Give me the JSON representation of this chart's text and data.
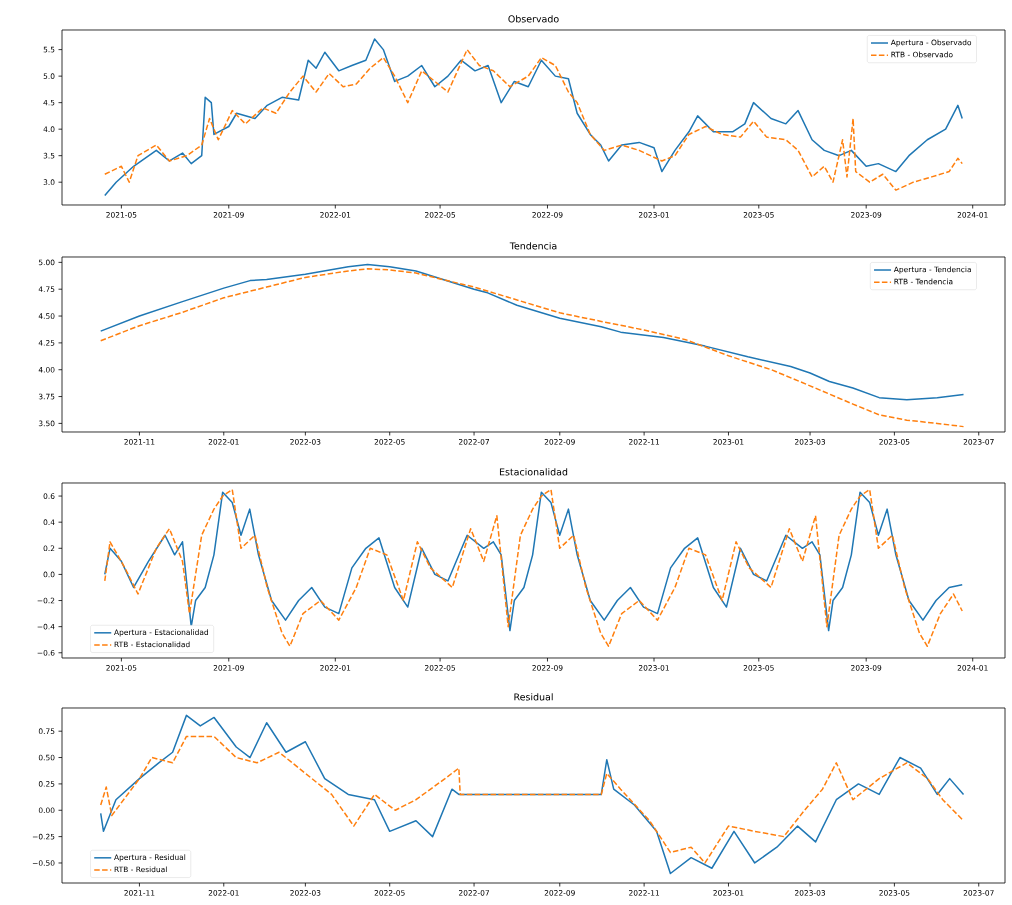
{
  "chart_data": [
    {
      "type": "line",
      "title": "Observado",
      "legend": "top right",
      "xlim": [
        "2021-02-22",
        "2024-02-07"
      ],
      "ylim": [
        2.57,
        5.87
      ],
      "xticks": [
        "2021-05",
        "2021-09",
        "2022-01",
        "2022-05",
        "2022-09",
        "2023-01",
        "2023-05",
        "2023-09",
        "2024-01"
      ],
      "yticks": [
        {
          "value": 3.0,
          "label": "3.0"
        },
        {
          "value": 3.5,
          "label": "3.5"
        },
        {
          "value": 4.0,
          "label": "4.0"
        },
        {
          "value": 4.5,
          "label": "4.5"
        },
        {
          "value": 5.0,
          "label": "5.0"
        },
        {
          "value": 5.5,
          "label": "5.5"
        }
      ],
      "series": [
        {
          "name": "Apertura - Observado",
          "color": "#1f77b4",
          "line_style": "solid",
          "x": [
            "2021-04-12",
            "2021-04-25",
            "2021-05-15",
            "2021-06-10",
            "2021-06-25",
            "2021-07-10",
            "2021-07-20",
            "2021-08-01",
            "2021-08-05",
            "2021-08-12",
            "2021-08-15",
            "2021-09-01",
            "2021-09-10",
            "2021-10-01",
            "2021-10-15",
            "2021-11-01",
            "2021-11-20",
            "2021-12-01",
            "2021-12-10",
            "2021-12-20",
            "2022-01-05",
            "2022-01-20",
            "2022-02-05",
            "2022-02-15",
            "2022-02-25",
            "2022-03-10",
            "2022-03-25",
            "2022-04-10",
            "2022-04-25",
            "2022-05-10",
            "2022-05-25",
            "2022-06-10",
            "2022-06-25",
            "2022-07-10",
            "2022-07-25",
            "2022-08-10",
            "2022-08-25",
            "2022-09-10",
            "2022-09-25",
            "2022-10-05",
            "2022-10-20",
            "2022-11-01",
            "2022-11-10",
            "2022-11-25",
            "2022-12-15",
            "2023-01-01",
            "2023-01-10",
            "2023-01-25",
            "2023-02-10",
            "2023-02-20",
            "2023-03-10",
            "2023-04-01",
            "2023-04-15",
            "2023-04-25",
            "2023-05-15",
            "2023-06-01",
            "2023-06-15",
            "2023-07-01",
            "2023-07-15",
            "2023-08-01",
            "2023-08-15",
            "2023-09-01",
            "2023-09-15",
            "2023-10-05",
            "2023-10-20",
            "2023-11-10",
            "2023-12-01",
            "2023-12-15",
            "2023-12-20"
          ],
          "values": [
            2.75,
            3.0,
            3.3,
            3.6,
            3.4,
            3.55,
            3.35,
            3.5,
            4.6,
            4.5,
            3.9,
            4.05,
            4.3,
            4.2,
            4.45,
            4.6,
            4.55,
            5.3,
            5.15,
            5.45,
            5.1,
            5.2,
            5.3,
            5.7,
            5.5,
            4.9,
            5.0,
            5.2,
            4.8,
            5.0,
            5.3,
            5.1,
            5.2,
            4.5,
            4.9,
            4.8,
            5.3,
            5.0,
            4.95,
            4.3,
            3.9,
            3.7,
            3.4,
            3.7,
            3.75,
            3.65,
            3.2,
            3.6,
            3.95,
            4.25,
            3.95,
            3.95,
            4.1,
            4.5,
            4.2,
            4.1,
            4.35,
            3.8,
            3.6,
            3.5,
            3.6,
            3.3,
            3.35,
            3.2,
            3.5,
            3.8,
            4.0,
            4.45,
            4.2
          ]
        },
        {
          "name": "RTB - Observado",
          "color": "#ff7f0e",
          "line_style": "dashed",
          "x": [
            "2021-04-12",
            "2021-05-01",
            "2021-05-10",
            "2021-05-20",
            "2021-06-10",
            "2021-06-25",
            "2021-07-15",
            "2021-08-01",
            "2021-08-10",
            "2021-08-20",
            "2021-09-05",
            "2021-09-20",
            "2021-10-10",
            "2021-10-25",
            "2021-11-10",
            "2021-11-25",
            "2021-12-10",
            "2021-12-25",
            "2022-01-10",
            "2022-01-25",
            "2022-02-10",
            "2022-02-25",
            "2022-03-10",
            "2022-03-25",
            "2022-04-10",
            "2022-04-25",
            "2022-05-10",
            "2022-06-01",
            "2022-06-15",
            "2022-07-01",
            "2022-07-20",
            "2022-08-10",
            "2022-08-25",
            "2022-09-10",
            "2022-09-25",
            "2022-10-05",
            "2022-10-20",
            "2022-11-05",
            "2022-11-25",
            "2022-12-15",
            "2023-01-10",
            "2023-01-25",
            "2023-02-10",
            "2023-03-01",
            "2023-03-20",
            "2023-04-10",
            "2023-04-25",
            "2023-05-10",
            "2023-06-01",
            "2023-06-15",
            "2023-07-01",
            "2023-07-15",
            "2023-07-25",
            "2023-08-05",
            "2023-08-10",
            "2023-08-17",
            "2023-08-20",
            "2023-09-05",
            "2023-09-20",
            "2023-10-05",
            "2023-10-25",
            "2023-11-15",
            "2023-12-05",
            "2023-12-15",
            "2023-12-20"
          ],
          "values": [
            3.15,
            3.3,
            3.0,
            3.5,
            3.7,
            3.4,
            3.5,
            3.7,
            4.2,
            3.8,
            4.35,
            4.1,
            4.4,
            4.3,
            4.7,
            5.0,
            4.7,
            5.05,
            4.8,
            4.85,
            5.15,
            5.35,
            5.0,
            4.5,
            5.1,
            4.9,
            4.7,
            5.5,
            5.2,
            5.1,
            4.8,
            5.0,
            5.35,
            5.2,
            4.7,
            4.5,
            3.9,
            3.6,
            3.7,
            3.6,
            3.4,
            3.5,
            3.9,
            4.05,
            3.9,
            3.85,
            4.15,
            3.85,
            3.8,
            3.6,
            3.1,
            3.3,
            3.0,
            3.8,
            3.1,
            4.2,
            3.2,
            3.0,
            3.15,
            2.85,
            3.0,
            3.1,
            3.2,
            3.45,
            3.35
          ]
        }
      ]
    },
    {
      "type": "line",
      "title": "Tendencia",
      "legend": "top right",
      "xlim": [
        "2021-09-06",
        "2023-07-20"
      ],
      "ylim": [
        3.42,
        5.05
      ],
      "xticks": [
        "2021-11",
        "2022-01",
        "2022-03",
        "2022-05",
        "2022-07",
        "2022-09",
        "2022-11",
        "2023-01",
        "2023-03",
        "2023-05",
        "2023-07"
      ],
      "yticks": [
        {
          "value": 3.5,
          "label": "3.50"
        },
        {
          "value": 3.75,
          "label": "3.75"
        },
        {
          "value": 4.0,
          "label": "4.00"
        },
        {
          "value": 4.25,
          "label": "4.25"
        },
        {
          "value": 4.5,
          "label": "4.50"
        },
        {
          "value": 4.75,
          "label": "4.75"
        },
        {
          "value": 5.0,
          "label": "5.00"
        }
      ],
      "series": [
        {
          "name": "Apertura - Tendencia",
          "color": "#1f77b4",
          "line_style": "solid",
          "x": [
            "2021-10-04",
            "2021-11-01",
            "2021-12-01",
            "2022-01-01",
            "2022-01-20",
            "2022-02-01",
            "2022-03-01",
            "2022-04-01",
            "2022-04-15",
            "2022-05-01",
            "2022-05-20",
            "2022-07-01",
            "2022-07-10",
            "2022-08-01",
            "2022-09-01",
            "2022-10-01",
            "2022-10-15",
            "2022-11-15",
            "2022-12-15",
            "2023-01-15",
            "2023-02-15",
            "2023-03-01",
            "2023-03-15",
            "2023-04-01",
            "2023-04-20",
            "2023-05-10",
            "2023-06-01",
            "2023-06-20"
          ],
          "values": [
            4.36,
            4.5,
            4.63,
            4.76,
            4.83,
            4.84,
            4.89,
            4.96,
            4.98,
            4.96,
            4.92,
            4.75,
            4.72,
            4.6,
            4.48,
            4.4,
            4.35,
            4.3,
            4.22,
            4.12,
            4.03,
            3.97,
            3.89,
            3.83,
            3.74,
            3.72,
            3.74,
            3.77
          ]
        },
        {
          "name": "RTB - Tendencia",
          "color": "#ff7f0e",
          "line_style": "dashed",
          "x": [
            "2021-10-04",
            "2021-11-01",
            "2021-12-01",
            "2022-01-01",
            "2022-02-01",
            "2022-03-01",
            "2022-04-01",
            "2022-04-15",
            "2022-05-01",
            "2022-05-20",
            "2022-07-01",
            "2022-08-01",
            "2022-09-01",
            "2022-10-01",
            "2022-11-01",
            "2022-12-01",
            "2023-01-01",
            "2023-02-01",
            "2023-03-01",
            "2023-04-01",
            "2023-04-20",
            "2023-05-10",
            "2023-06-01",
            "2023-06-20"
          ],
          "values": [
            4.27,
            4.41,
            4.53,
            4.67,
            4.77,
            4.86,
            4.92,
            4.94,
            4.93,
            4.9,
            4.77,
            4.65,
            4.53,
            4.45,
            4.37,
            4.28,
            4.13,
            4.0,
            3.85,
            3.68,
            3.58,
            3.53,
            3.5,
            3.47
          ]
        }
      ]
    },
    {
      "type": "line",
      "title": "Estacionalidad",
      "legend": "bottom left",
      "xlim": [
        "2021-02-22",
        "2024-02-07"
      ],
      "ylim": [
        -0.64,
        0.7
      ],
      "xticks": [
        "2021-05",
        "2021-09",
        "2022-01",
        "2022-05",
        "2022-09",
        "2023-01",
        "2023-05",
        "2023-09",
        "2024-01"
      ],
      "yticks": [
        {
          "value": -0.6,
          "label": "−0.6"
        },
        {
          "value": -0.4,
          "label": "−0.4"
        },
        {
          "value": -0.2,
          "label": "−0.2"
        },
        {
          "value": 0.0,
          "label": "0.0"
        },
        {
          "value": 0.2,
          "label": "0.2"
        },
        {
          "value": 0.4,
          "label": "0.4"
        },
        {
          "value": 0.6,
          "label": "0.6"
        }
      ],
      "series": [
        {
          "name": "Apertura - Estacionalidad",
          "color": "#1f77b4",
          "line_style": "solid",
          "x": [
            "2021-04-12",
            "2021-04-18",
            "2021-05-01",
            "2021-05-15",
            "2021-06-01",
            "2021-06-20",
            "2021-07-01",
            "2021-07-10",
            "2021-07-20",
            "2021-07-25",
            "2021-08-05",
            "2021-08-15",
            "2021-08-25",
            "2021-09-05",
            "2021-09-15",
            "2021-09-25",
            "2021-10-05",
            "2021-10-20",
            "2021-11-05",
            "2021-11-20",
            "2021-12-05",
            "2021-12-20",
            "2022-01-05",
            "2022-01-20",
            "2022-02-05",
            "2022-02-20",
            "2022-03-10",
            "2022-03-25",
            "2022-04-10",
            "2022-04-25",
            "2022-05-10",
            "2022-06-01",
            "2022-06-20",
            "2022-07-01",
            "2022-07-10",
            "2022-07-20",
            "2022-07-25",
            "2022-08-05",
            "2022-08-15",
            "2022-08-25",
            "2022-09-05",
            "2022-09-15",
            "2022-09-25",
            "2022-10-05",
            "2022-10-20",
            "2022-11-05",
            "2022-11-20",
            "2022-12-05",
            "2022-12-20",
            "2023-01-05",
            "2023-01-20",
            "2023-02-05",
            "2023-02-20",
            "2023-03-10",
            "2023-03-25",
            "2023-04-10",
            "2023-04-25",
            "2023-05-10",
            "2023-06-01",
            "2023-06-20",
            "2023-07-01",
            "2023-07-10",
            "2023-07-20",
            "2023-07-25",
            "2023-08-05",
            "2023-08-15",
            "2023-08-25",
            "2023-09-05",
            "2023-09-15",
            "2023-09-25",
            "2023-10-05",
            "2023-10-20",
            "2023-11-05",
            "2023-11-20",
            "2023-12-05",
            "2023-12-20"
          ],
          "values": [
            0.0,
            0.2,
            0.1,
            -0.1,
            0.1,
            0.3,
            0.15,
            0.25,
            -0.4,
            -0.2,
            -0.1,
            0.15,
            0.63,
            0.55,
            0.3,
            0.5,
            0.15,
            -0.2,
            -0.35,
            -0.2,
            -0.1,
            -0.25,
            -0.3,
            0.05,
            0.2,
            0.28,
            -0.1,
            -0.25,
            0.2,
            0.0,
            -0.05,
            0.3,
            0.2,
            0.25,
            0.15,
            -0.43,
            -0.2,
            -0.1,
            0.15,
            0.63,
            0.55,
            0.3,
            0.5,
            0.15,
            -0.2,
            -0.35,
            -0.2,
            -0.1,
            -0.25,
            -0.3,
            0.05,
            0.2,
            0.28,
            -0.1,
            -0.25,
            0.2,
            0.0,
            -0.05,
            0.3,
            0.2,
            0.25,
            0.15,
            -0.43,
            -0.2,
            -0.1,
            0.15,
            0.63,
            0.55,
            0.3,
            0.5,
            0.15,
            -0.2,
            -0.35,
            -0.2,
            -0.1,
            -0.08
          ]
        },
        {
          "name": "RTB - Estacionalidad",
          "color": "#ff7f0e",
          "line_style": "dashed",
          "x": [
            "2021-04-12",
            "2021-04-18",
            "2021-05-05",
            "2021-05-20",
            "2021-06-10",
            "2021-06-25",
            "2021-07-10",
            "2021-07-18",
            "2021-08-01",
            "2021-08-15",
            "2021-08-25",
            "2021-09-05",
            "2021-09-15",
            "2021-10-01",
            "2021-10-15",
            "2021-11-01",
            "2021-11-10",
            "2021-11-25",
            "2021-12-15",
            "2022-01-05",
            "2022-01-25",
            "2022-02-10",
            "2022-03-01",
            "2022-03-20",
            "2022-04-05",
            "2022-04-20",
            "2022-05-15",
            "2022-06-05",
            "2022-06-20",
            "2022-07-05",
            "2022-07-18",
            "2022-08-01",
            "2022-08-15",
            "2022-08-25",
            "2022-09-05",
            "2022-09-15",
            "2022-10-01",
            "2022-10-15",
            "2022-11-01",
            "2022-11-10",
            "2022-11-25",
            "2022-12-15",
            "2023-01-05",
            "2023-01-25",
            "2023-02-10",
            "2023-03-01",
            "2023-03-20",
            "2023-04-05",
            "2023-04-20",
            "2023-05-15",
            "2023-06-05",
            "2023-06-20",
            "2023-07-05",
            "2023-07-18",
            "2023-08-01",
            "2023-08-15",
            "2023-08-25",
            "2023-09-05",
            "2023-09-15",
            "2023-10-01",
            "2023-10-15",
            "2023-11-01",
            "2023-11-10",
            "2023-11-25",
            "2023-12-10",
            "2023-12-20"
          ],
          "values": [
            -0.05,
            0.25,
            0.05,
            -0.15,
            0.2,
            0.35,
            0.1,
            -0.3,
            0.3,
            0.5,
            0.6,
            0.65,
            0.2,
            0.3,
            -0.1,
            -0.45,
            -0.55,
            -0.3,
            -0.2,
            -0.35,
            -0.1,
            0.2,
            0.15,
            -0.2,
            0.25,
            0.05,
            -0.1,
            0.35,
            0.1,
            0.45,
            -0.4,
            0.3,
            0.5,
            0.6,
            0.65,
            0.2,
            0.3,
            -0.1,
            -0.45,
            -0.55,
            -0.3,
            -0.2,
            -0.35,
            -0.1,
            0.2,
            0.15,
            -0.2,
            0.25,
            0.05,
            -0.1,
            0.35,
            0.1,
            0.45,
            -0.4,
            0.3,
            0.5,
            0.6,
            0.65,
            0.2,
            0.3,
            -0.1,
            -0.45,
            -0.55,
            -0.3,
            -0.15,
            -0.28
          ]
        }
      ]
    },
    {
      "type": "line",
      "title": "Residual",
      "legend": "bottom left",
      "xlim": [
        "2021-09-06",
        "2023-07-20"
      ],
      "ylim": [
        -0.69,
        0.97
      ],
      "xticks": [
        "2021-11",
        "2022-01",
        "2022-03",
        "2022-05",
        "2022-07",
        "2022-09",
        "2022-11",
        "2023-01",
        "2023-03",
        "2023-05",
        "2023-07"
      ],
      "yticks": [
        {
          "value": -0.5,
          "label": "−0.50"
        },
        {
          "value": -0.25,
          "label": "−0.25"
        },
        {
          "value": 0.0,
          "label": "0.00"
        },
        {
          "value": 0.25,
          "label": "0.25"
        },
        {
          "value": 0.5,
          "label": "0.50"
        },
        {
          "value": 0.75,
          "label": "0.75"
        }
      ],
      "series": [
        {
          "name": "Apertura - Residual",
          "color": "#1f77b4",
          "line_style": "solid",
          "x": [
            "2021-10-04",
            "2021-10-06",
            "2021-10-15",
            "2021-11-01",
            "2021-11-15",
            "2021-11-25",
            "2021-12-05",
            "2021-12-15",
            "2021-12-25",
            "2022-01-10",
            "2022-01-20",
            "2022-02-01",
            "2022-02-15",
            "2022-03-01",
            "2022-03-15",
            "2022-04-01",
            "2022-04-20",
            "2022-05-01",
            "2022-05-20",
            "2022-06-01",
            "2022-06-15",
            "2022-06-20",
            "2022-10-01",
            "2022-10-05",
            "2022-10-10",
            "2022-10-25",
            "2022-11-10",
            "2022-11-20",
            "2022-12-05",
            "2022-12-20",
            "2023-01-05",
            "2023-01-20",
            "2023-02-05",
            "2023-02-20",
            "2023-03-05",
            "2023-03-20",
            "2023-04-05",
            "2023-04-20",
            "2023-05-05",
            "2023-05-20",
            "2023-06-01",
            "2023-06-10",
            "2023-06-20"
          ],
          "values": [
            -0.03,
            -0.2,
            0.1,
            0.3,
            0.45,
            0.55,
            0.9,
            0.8,
            0.88,
            0.6,
            0.5,
            0.83,
            0.55,
            0.65,
            0.3,
            0.15,
            0.1,
            -0.2,
            -0.1,
            -0.25,
            0.2,
            0.15,
            0.15,
            0.48,
            0.2,
            0.05,
            -0.2,
            -0.6,
            -0.45,
            -0.55,
            -0.2,
            -0.5,
            -0.35,
            -0.15,
            -0.3,
            0.1,
            0.25,
            0.15,
            0.5,
            0.4,
            0.15,
            0.3,
            0.15
          ]
        },
        {
          "name": "RTB - Residual",
          "color": "#ff7f0e",
          "line_style": "dashed",
          "x": [
            "2021-10-04",
            "2021-10-08",
            "2021-10-12",
            "2021-11-01",
            "2021-11-10",
            "2021-11-25",
            "2021-12-05",
            "2021-12-25",
            "2022-01-10",
            "2022-01-25",
            "2022-02-10",
            "2022-03-01",
            "2022-03-20",
            "2022-04-05",
            "2022-04-20",
            "2022-05-05",
            "2022-05-20",
            "2022-06-10",
            "2022-06-20",
            "2022-06-21",
            "2022-10-01",
            "2022-10-05",
            "2022-10-15",
            "2022-11-05",
            "2022-11-20",
            "2022-12-05",
            "2022-12-15",
            "2023-01-01",
            "2023-01-20",
            "2023-02-10",
            "2023-02-25",
            "2023-03-10",
            "2023-03-20",
            "2023-04-01",
            "2023-04-20",
            "2023-05-10",
            "2023-05-25",
            "2023-06-05",
            "2023-06-20"
          ],
          "values": [
            0.05,
            0.22,
            -0.05,
            0.3,
            0.5,
            0.45,
            0.7,
            0.7,
            0.5,
            0.45,
            0.55,
            0.35,
            0.15,
            -0.15,
            0.15,
            0.0,
            0.1,
            0.3,
            0.4,
            0.15,
            0.15,
            0.35,
            0.2,
            -0.1,
            -0.4,
            -0.35,
            -0.5,
            -0.15,
            -0.2,
            -0.25,
            0.0,
            0.2,
            0.45,
            0.1,
            0.3,
            0.45,
            0.3,
            0.1,
            -0.1
          ]
        }
      ]
    }
  ]
}
